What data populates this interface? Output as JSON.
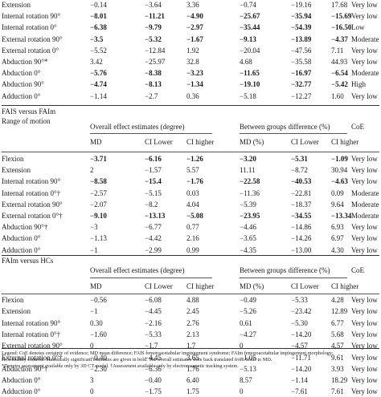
{
  "sections": [
    {
      "rows": [
        {
          "label": "Extension",
          "md": "−0.14",
          "cil": "−3.64",
          "cih": "3.36",
          "mdp": "−0.74",
          "cilp": "−19.16",
          "cihp": "17.68",
          "coe": "Very low",
          "bold": [
            false,
            false,
            false,
            false,
            false,
            false
          ]
        },
        {
          "label": "Internal rotation 90°",
          "md": "−8.01",
          "cil": "−11.21",
          "cih": "−4.90",
          "mdp": "−25.67",
          "cilp": "−35.94",
          "cihp": "−15.69",
          "coe": "Very low",
          "bold": [
            true,
            true,
            true,
            true,
            true,
            true
          ]
        },
        {
          "label": "Internal rotation 0°",
          "md": "−6.38",
          "cil": "−9.79",
          "cih": "−2.97",
          "mdp": "−35.44",
          "cilp": "−54.39",
          "cihp": "−16.50",
          "coe": "Low",
          "bold": [
            true,
            true,
            true,
            true,
            true,
            true
          ]
        },
        {
          "label": "External rotation 90°",
          "md": "−3.5",
          "cil": "−5.32",
          "cih": "−1.67",
          "mdp": "−9.13",
          "cilp": "−13.89",
          "cihp": "−4.37",
          "coe": "Moderate",
          "bold": [
            true,
            true,
            true,
            true,
            true,
            true
          ]
        },
        {
          "label": "External rotation 0°",
          "md": "−5.52",
          "cil": "−12.84",
          "cih": "1.92",
          "mdp": "−20.04",
          "cilp": "−47.56",
          "cihp": "7.11",
          "coe": "Very low",
          "bold": [
            false,
            false,
            false,
            false,
            false,
            false
          ]
        },
        {
          "label": "Abduction 90°*",
          "md": "3.42",
          "cil": "−25.97",
          "cih": "32.8",
          "mdp": "4.68",
          "cilp": "−35.58",
          "cihp": "44.93",
          "coe": "Very low",
          "bold": [
            false,
            false,
            false,
            false,
            false,
            false
          ]
        },
        {
          "label": "Abduction 0°",
          "md": "−5.76",
          "cil": "−8.38",
          "cih": "−3.23",
          "mdp": "−11.65",
          "cilp": "−16.97",
          "cihp": "−6.54",
          "coe": "Moderate",
          "bold": [
            true,
            true,
            true,
            true,
            true,
            true
          ]
        },
        {
          "label": "Abduction 90°",
          "md": "−4.74",
          "cil": "−8.13",
          "cih": "−1.34",
          "mdp": "−19.10",
          "cilp": "−32.77",
          "cihp": "−5.42",
          "coe": "High",
          "bold": [
            true,
            true,
            true,
            true,
            true,
            true
          ]
        },
        {
          "label": "Adduction 0°",
          "md": "−1.14",
          "cil": "−2.7",
          "cih": "0.36",
          "mdp": "−5.18",
          "cilp": "−12.27",
          "cihp": "1.60",
          "coe": "Very low",
          "bold": [
            false,
            false,
            false,
            false,
            false,
            false
          ]
        }
      ]
    },
    {
      "title": "FAIS versus FAIm",
      "range_label": "Range of motion",
      "effect_header": "Overall effect estimates (degree)",
      "diff_header": "Between groups difference (%)",
      "coe_header": "CoE",
      "col_md": "MD",
      "col_cil": "CI Lower",
      "col_cih": "CI higher",
      "col_mdp": "MD (%)",
      "col_cilp": "CI Lower",
      "col_cihp": "CI higher",
      "rows": [
        {
          "label": "Flexion",
          "md": "−3.71",
          "cil": "−6.16",
          "cih": "−1.26",
          "mdp": "−3.20",
          "cilp": "−5.31",
          "cihp": "−1.09",
          "coe": "Very low",
          "bold": [
            true,
            true,
            true,
            true,
            true,
            true
          ]
        },
        {
          "label": "Extension",
          "md": "2",
          "cil": "−1.57",
          "cih": "5.57",
          "mdp": "11.11",
          "cilp": "−8.72",
          "cihp": "30.94",
          "coe": "Very low",
          "bold": [
            false,
            false,
            false,
            false,
            false,
            false
          ]
        },
        {
          "label": "Internal rotation 90°",
          "md": "−8.58",
          "cil": "−15.4",
          "cih": "−1.76",
          "mdp": "−22.58",
          "cilp": "−40.53",
          "cihp": "−4.63",
          "coe": "Very low",
          "bold": [
            true,
            true,
            true,
            true,
            true,
            true
          ]
        },
        {
          "label": "Internal rotation 0°†",
          "md": "−2.57",
          "cil": "−5.15",
          "cih": "0.03",
          "mdp": "−11.36",
          "cilp": "−22.81",
          "cihp": "0.09",
          "coe": "Moderate",
          "bold": [
            false,
            false,
            false,
            false,
            false,
            false
          ]
        },
        {
          "label": "External rotation 90°",
          "md": "−2.07",
          "cil": "−8.2",
          "cih": "4.04",
          "mdp": "−5.39",
          "cilp": "−18.37",
          "cihp": "9.64",
          "coe": "Moderate",
          "bold": [
            false,
            false,
            false,
            false,
            false,
            false
          ]
        },
        {
          "label": "External rotation 0°†",
          "md": "−9.10",
          "cil": "−13.13",
          "cih": "−5.08",
          "mdp": "−23.95",
          "cilp": "−34.55",
          "cihp": "−13.34",
          "coe": "Moderate",
          "bold": [
            true,
            true,
            true,
            true,
            true,
            true
          ]
        },
        {
          "label": "Abduction 90°†",
          "md": "−3",
          "cil": "−6.77",
          "cih": "0.77",
          "mdp": "−4.46",
          "cilp": "−14.86",
          "cihp": "6.93",
          "coe": "Very low",
          "bold": [
            false,
            false,
            false,
            false,
            false,
            false
          ]
        },
        {
          "label": "Abduction 0°",
          "md": "−1.13",
          "cil": "−4.42",
          "cih": "2.16",
          "mdp": "−3.65",
          "cilp": "−14.26",
          "cihp": "6.97",
          "coe": "Very low",
          "bold": [
            false,
            false,
            false,
            false,
            false,
            false
          ]
        },
        {
          "label": "Adduction 0°",
          "md": "−1",
          "cil": "−2.99",
          "cih": "0.99",
          "mdp": "−4.35",
          "cilp": "−13.00",
          "cihp": "4.30",
          "coe": "Very low",
          "bold": [
            false,
            false,
            false,
            false,
            false,
            false
          ]
        }
      ]
    },
    {
      "title": "FAIm versus HCs",
      "effect_header": "Overall effect estimates (degree)",
      "diff_header": "Between groups difference (%)",
      "coe_header": "CoE",
      "col_md": "MD",
      "col_cil": "CI Lower",
      "col_cih": "CI higher",
      "col_mdp": "MD (%)",
      "col_cilp": "CI Lower",
      "col_cihp": "CI higher",
      "rows": [
        {
          "label": "Flexion",
          "md": "−0.56",
          "cil": "−6.08",
          "cih": "4.88",
          "mdp": "−0.49",
          "cilp": "−5.33",
          "cihp": "4.28",
          "coe": "Very low",
          "bold": [
            false,
            false,
            false,
            false,
            false,
            false
          ]
        },
        {
          "label": "Extension",
          "md": "−1",
          "cil": "−4.45",
          "cih": "2.45",
          "mdp": "−5.26",
          "cilp": "−23.42",
          "cihp": "12.89",
          "coe": "Very low",
          "bold": [
            false,
            false,
            false,
            false,
            false,
            false
          ]
        },
        {
          "label": "Internal rotation 90°",
          "md": "0.30",
          "cil": "−2.16",
          "cih": "2.76",
          "mdp": "0.61",
          "cilp": "−5.30",
          "cihp": "6.77",
          "coe": "Very low",
          "bold": [
            false,
            false,
            false,
            false,
            false,
            false
          ]
        },
        {
          "label": "Internal rotation 0°†",
          "md": "−1.60",
          "cil": "−5.33",
          "cih": "2.13",
          "mdp": "−4.27",
          "cilp": "−14.20",
          "cihp": "5.68",
          "coe": "Very low",
          "bold": [
            false,
            false,
            false,
            false,
            false,
            false
          ]
        },
        {
          "label": "External rotation 90°",
          "md": "0",
          "cil": "−1.7",
          "cih": "1.7",
          "mdp": "0",
          "cilp": "−4.57",
          "cihp": "4.57",
          "coe": "Very low",
          "bold": [
            false,
            false,
            false,
            false,
            false,
            false
          ]
        },
        {
          "label": "External rotation 0°†",
          "md": "−0.40",
          "cil": "−4.45",
          "cih": "3.65",
          "mdp": "−1.05",
          "cilp": "−11.71",
          "cihp": "9.61",
          "coe": "Very low",
          "bold": [
            false,
            false,
            false,
            false,
            false,
            false
          ]
        },
        {
          "label": "Abduction 90°†",
          "md": "−2.30",
          "cil": "−6.36",
          "cih": "1.76",
          "mdp": "−5.13",
          "cilp": "−14.20",
          "cihp": "3.93",
          "coe": "Very low",
          "bold": [
            false,
            false,
            false,
            false,
            false,
            false
          ]
        },
        {
          "label": "Abduction 0°",
          "md": "3",
          "cil": "−0.40",
          "cih": "6.40",
          "mdp": "8.57",
          "cilp": "−1.14",
          "cihp": "18.29",
          "coe": "Very low",
          "bold": [
            false,
            false,
            false,
            false,
            false,
            false
          ]
        },
        {
          "label": "Adduction 0°",
          "md": "0",
          "cil": "−1.75",
          "cih": "1.75",
          "mdp": "0",
          "cilp": "−7.61",
          "cihp": "7.61",
          "coe": "Very low",
          "bold": [
            false,
            false,
            false,
            false,
            false,
            false
          ]
        }
      ]
    }
  ],
  "legend": {
    "line1": "Legend: CoE denotes certainty of evidence; MD mean difference; FAIS femoroacetabular impingement syndrome; FAIm femoroacetabular impingement morphology;",
    "line2": "HCs healthy controls. Statistically significant estimates are given in bold. The overall estimates were back translated from SMD to MD.",
    "line3": "*Denotes assessment available only by 3D CT model. †Assessment available only by electromagnetic tracking system."
  }
}
